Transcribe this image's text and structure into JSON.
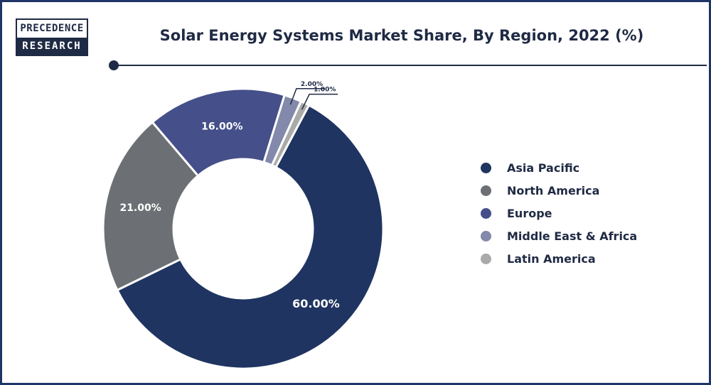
{
  "logo": {
    "line1": "PRECEDENCE",
    "line2": "RESEARCH"
  },
  "header": {
    "title": "Solar Energy Systems Market Share, By Region, 2022 (%)"
  },
  "colors": {
    "asia_pacific": "#1f3461",
    "north_america": "#6c6f73",
    "europe": "#454f89",
    "middle_east_africa": "#8289ab",
    "latin_america": "#aaaaaa"
  },
  "chart_data": {
    "type": "pie",
    "variant": "donut",
    "title": "Solar Energy Systems Market Share, By Region, 2022 (%)",
    "legend_position": "right",
    "slices": [
      {
        "name": "Asia Pacific",
        "value": 60.0,
        "label": "60.00%",
        "color": "#1f3461"
      },
      {
        "name": "North America",
        "value": 21.0,
        "label": "21.00%",
        "color": "#6c6f73"
      },
      {
        "name": "Europe",
        "value": 16.0,
        "label": "16.00%",
        "color": "#454f89"
      },
      {
        "name": "Middle East & Africa",
        "value": 2.0,
        "label": "2.00%",
        "color": "#8289ab"
      },
      {
        "name": "Latin America",
        "value": 1.0,
        "label": "1.00%",
        "color": "#aaaaaa"
      }
    ]
  }
}
